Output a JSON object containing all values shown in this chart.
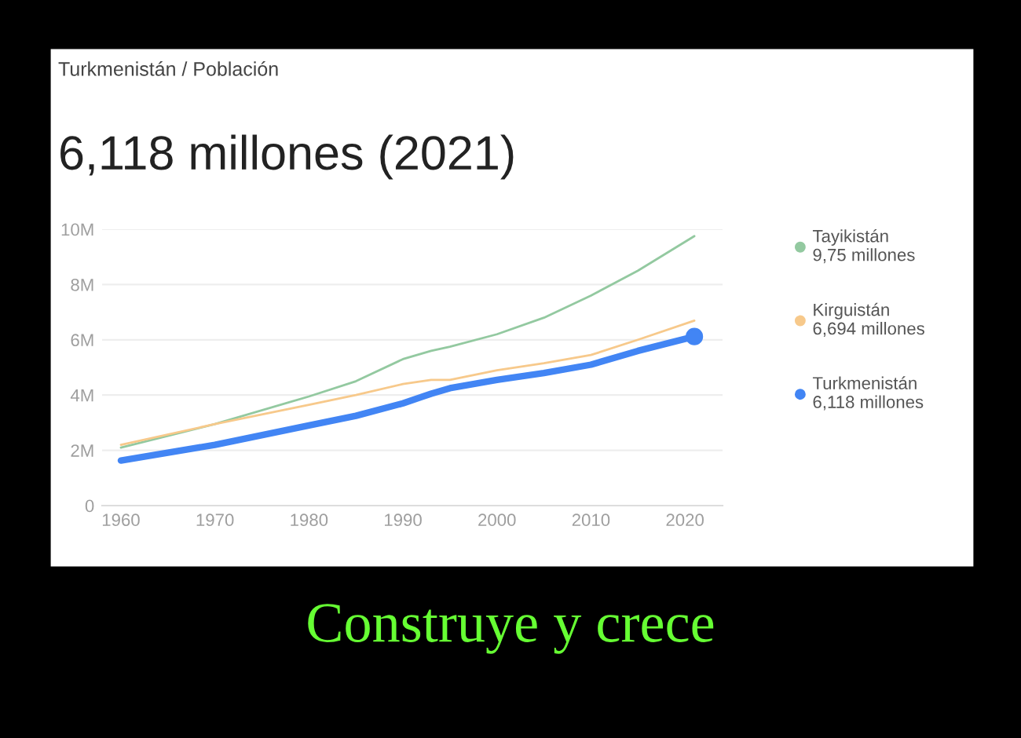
{
  "chart_data": {
    "type": "line",
    "subtitle": "Turkmenistán / Población",
    "title": "6,118 millones (2021)",
    "x": [
      1960,
      1970,
      1980,
      1985,
      1990,
      1993,
      1995,
      2000,
      2005,
      2010,
      2015,
      2021
    ],
    "series": [
      {
        "name": "Tayikistán",
        "color": "#93c9a0",
        "values": [
          2.1,
          2.95,
          3.95,
          4.5,
          5.3,
          5.6,
          5.75,
          6.2,
          6.8,
          7.6,
          8.5,
          9.75
        ]
      },
      {
        "name": "Kirguistán",
        "color": "#f7c98b",
        "values": [
          2.2,
          2.95,
          3.65,
          4.0,
          4.4,
          4.55,
          4.55,
          4.9,
          5.15,
          5.45,
          6.0,
          6.694
        ]
      },
      {
        "name": "Turkmenistán",
        "color": "#4285f4",
        "values": [
          1.63,
          2.2,
          2.9,
          3.25,
          3.7,
          4.05,
          4.25,
          4.55,
          4.8,
          5.1,
          5.6,
          6.118
        ]
      }
    ],
    "xlim": [
      1958,
      2024
    ],
    "xticks": [
      1960,
      1970,
      1980,
      1990,
      2000,
      2010,
      2020
    ],
    "ylim": [
      0,
      10
    ],
    "yticks": [
      {
        "value": 0,
        "label": "0"
      },
      {
        "value": 2,
        "label": "2M"
      },
      {
        "value": 4,
        "label": "4M"
      },
      {
        "value": 6,
        "label": "6M"
      },
      {
        "value": 8,
        "label": "8M"
      },
      {
        "value": 10,
        "label": "10M"
      }
    ],
    "grid": "y",
    "legend": "right",
    "annotations": [
      "9,75 millones",
      "6,694 millones",
      "6,118 millones",
      "Construye y crece"
    ]
  }
}
